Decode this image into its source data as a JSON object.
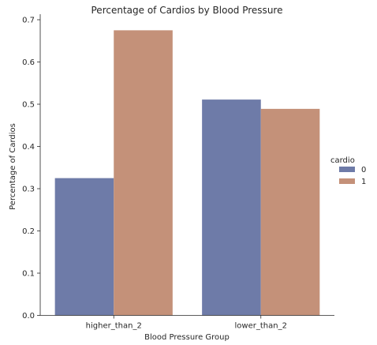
{
  "chart_data": {
    "type": "bar",
    "title": "Percentage of Cardios by Blood Pressure",
    "xlabel": "Blood Pressure Group",
    "ylabel": "Percentage of Cardios",
    "categories": [
      "higher_than_2",
      "lower_than_2"
    ],
    "series": [
      {
        "name": "0",
        "values": [
          0.325,
          0.511
        ],
        "color": "#6e7ba8"
      },
      {
        "name": "1",
        "values": [
          0.675,
          0.489
        ],
        "color": "#c49179"
      }
    ],
    "ylim": [
      0,
      0.7
    ],
    "yticks": [
      "0.0",
      "0.1",
      "0.2",
      "0.3",
      "0.4",
      "0.5",
      "0.6",
      "0.7"
    ],
    "grid": false,
    "legend": {
      "title": "cardio",
      "placement": "right"
    }
  }
}
